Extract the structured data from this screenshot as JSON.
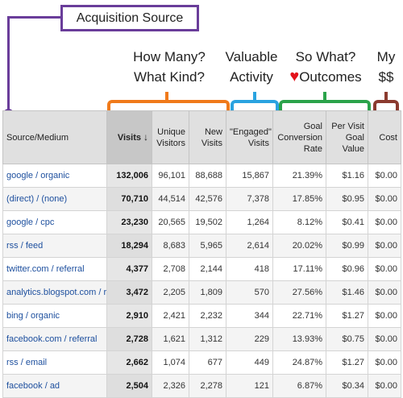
{
  "annotations": {
    "acquisition_source": "Acquisition Source",
    "how_many": "How Many?",
    "what_kind": "What Kind?",
    "valuable": "Valuable",
    "activity": "Activity",
    "so_what": "So What?",
    "outcomes": "Outcomes",
    "my": "My",
    "dollars": "$$",
    "colors": {
      "acquisition": "#6a3d9a",
      "how_many": "#f07a1a",
      "valuable": "#2aa3e0",
      "so_what": "#2ba34a",
      "my": "#8b3a2f",
      "heart": "#e3111a"
    }
  },
  "table": {
    "headers": {
      "source": "Source/Medium",
      "visits": "Visits",
      "unique_1": "Unique",
      "unique_2": "Visitors",
      "new_1": "New",
      "new_2": "Visits",
      "engaged_1": "\"Engaged\"",
      "engaged_2": "Visits",
      "goal_1": "Goal",
      "goal_2": "Conversion",
      "goal_3": "Rate",
      "pervisit_1": "Per Visit",
      "pervisit_2": "Goal",
      "pervisit_3": "Value",
      "cost": "Cost"
    },
    "sort_icon": "arrow-down-icon",
    "rows": [
      {
        "source": "google / organic",
        "visits": "132,006",
        "unique": "96,101",
        "new": "88,688",
        "engaged": "15,867",
        "goal": "21.39%",
        "pervisit": "$1.16",
        "cost": "$0.00"
      },
      {
        "source": "(direct) / (none)",
        "visits": "70,710",
        "unique": "44,514",
        "new": "42,576",
        "engaged": "7,378",
        "goal": "17.85%",
        "pervisit": "$0.95",
        "cost": "$0.00"
      },
      {
        "source": "google / cpc",
        "visits": "23,230",
        "unique": "20,565",
        "new": "19,502",
        "engaged": "1,264",
        "goal": "8.12%",
        "pervisit": "$0.41",
        "cost": "$0.00"
      },
      {
        "source": "rss / feed",
        "visits": "18,294",
        "unique": "8,683",
        "new": "5,965",
        "engaged": "2,614",
        "goal": "20.02%",
        "pervisit": "$0.99",
        "cost": "$0.00"
      },
      {
        "source": "twitter.com / referral",
        "visits": "4,377",
        "unique": "2,708",
        "new": "2,144",
        "engaged": "418",
        "goal": "17.11%",
        "pervisit": "$0.96",
        "cost": "$0.00"
      },
      {
        "source": "analytics.blogspot.com / r",
        "visits": "3,472",
        "unique": "2,205",
        "new": "1,809",
        "engaged": "570",
        "goal": "27.56%",
        "pervisit": "$1.46",
        "cost": "$0.00"
      },
      {
        "source": "bing / organic",
        "visits": "2,910",
        "unique": "2,421",
        "new": "2,232",
        "engaged": "344",
        "goal": "22.71%",
        "pervisit": "$1.27",
        "cost": "$0.00"
      },
      {
        "source": "facebook.com / referral",
        "visits": "2,728",
        "unique": "1,621",
        "new": "1,312",
        "engaged": "229",
        "goal": "13.93%",
        "pervisit": "$0.75",
        "cost": "$0.00"
      },
      {
        "source": "rss / email",
        "visits": "2,662",
        "unique": "1,074",
        "new": "677",
        "engaged": "449",
        "goal": "24.87%",
        "pervisit": "$1.27",
        "cost": "$0.00"
      },
      {
        "source": "facebook / ad",
        "visits": "2,504",
        "unique": "2,326",
        "new": "2,278",
        "engaged": "121",
        "goal": "6.87%",
        "pervisit": "$0.34",
        "cost": "$0.00"
      }
    ]
  }
}
